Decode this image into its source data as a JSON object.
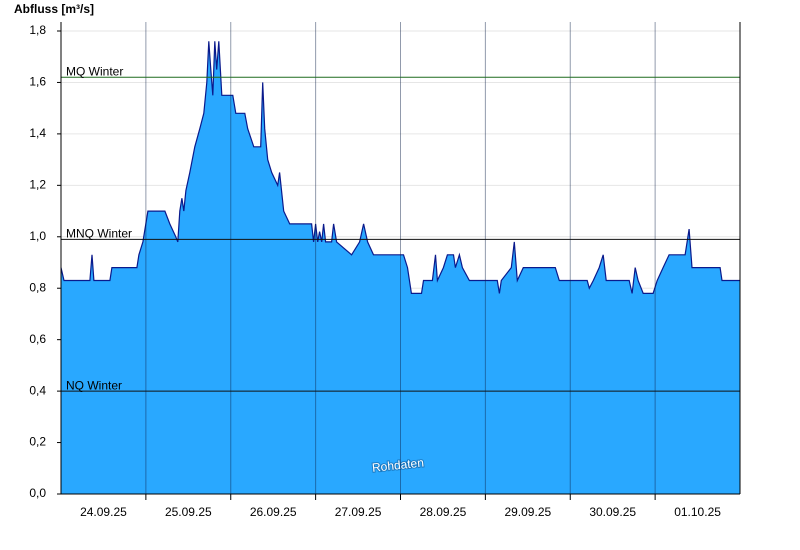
{
  "chart_data": {
    "type": "area",
    "title": "Abfluss [m³/s]",
    "annotation": "Rohdaten",
    "x": [
      0,
      0.035,
      0.341,
      0.365,
      0.388,
      0.576,
      0.6,
      0.894,
      0.918,
      0.965,
      1.024,
      1.224,
      1.282,
      1.353,
      1.376,
      1.4,
      1.424,
      1.447,
      1.471,
      1.518,
      1.576,
      1.635,
      1.682,
      1.718,
      1.741,
      1.765,
      1.788,
      1.812,
      1.835,
      1.859,
      1.894,
      2.024,
      2.059,
      2.165,
      2.2,
      2.271,
      2.353,
      2.376,
      2.4,
      2.435,
      2.482,
      2.553,
      2.576,
      2.624,
      2.694,
      2.953,
      2.976,
      3,
      3.024,
      3.047,
      3.071,
      3.094,
      3.118,
      3.188,
      3.212,
      3.247,
      3.424,
      3.518,
      3.565,
      3.612,
      3.682,
      4.035,
      4.082,
      4.129,
      4.247,
      4.271,
      4.376,
      4.412,
      4.435,
      4.506,
      4.553,
      4.624,
      4.647,
      4.694,
      4.729,
      4.812,
      5.141,
      5.165,
      5.188,
      5.306,
      5.341,
      5.376,
      5.447,
      5.824,
      5.871,
      6.2,
      6.224,
      6.271,
      6.341,
      6.388,
      6.424,
      6.694,
      6.729,
      6.765,
      6.8,
      6.859,
      6.976,
      7.024,
      7.094,
      7.165,
      7.353,
      7.4,
      7.435,
      7.765,
      7.788,
      8
    ],
    "values": [
      0.88,
      0.83,
      0.83,
      0.93,
      0.83,
      0.83,
      0.88,
      0.88,
      0.93,
      0.98,
      1.1,
      1.1,
      1.05,
      1.0,
      0.98,
      1.1,
      1.15,
      1.1,
      1.18,
      1.25,
      1.35,
      1.42,
      1.48,
      1.6,
      1.76,
      1.65,
      1.55,
      1.76,
      1.65,
      1.76,
      1.55,
      1.55,
      1.48,
      1.48,
      1.42,
      1.35,
      1.35,
      1.6,
      1.42,
      1.3,
      1.25,
      1.2,
      1.25,
      1.1,
      1.05,
      1.05,
      0.98,
      1.05,
      0.98,
      1.02,
      0.98,
      1.05,
      0.98,
      0.98,
      1.05,
      0.98,
      0.93,
      0.98,
      1.05,
      0.98,
      0.93,
      0.93,
      0.88,
      0.78,
      0.78,
      0.83,
      0.83,
      0.93,
      0.83,
      0.88,
      0.93,
      0.93,
      0.88,
      0.93,
      0.88,
      0.83,
      0.83,
      0.78,
      0.83,
      0.88,
      0.98,
      0.83,
      0.88,
      0.88,
      0.83,
      0.83,
      0.8,
      0.83,
      0.88,
      0.93,
      0.83,
      0.83,
      0.78,
      0.88,
      0.83,
      0.78,
      0.78,
      0.83,
      0.88,
      0.93,
      0.93,
      1.03,
      0.88,
      0.88,
      0.83,
      0.83
    ],
    "fill_color": "#29a8ff",
    "line_color": "#0a1a8c",
    "xlim": [
      0,
      8
    ],
    "xticks": [
      {
        "value": 0.5,
        "label": "24.09.25"
      },
      {
        "value": 1.5,
        "label": "25.09.25"
      },
      {
        "value": 2.5,
        "label": "26.09.25"
      },
      {
        "value": 3.5,
        "label": "27.09.25"
      },
      {
        "value": 4.5,
        "label": "28.09.25"
      },
      {
        "value": 5.5,
        "label": "29.09.25"
      },
      {
        "value": 6.5,
        "label": "30.09.25"
      },
      {
        "value": 7.5,
        "label": "01.10.25"
      }
    ],
    "xgrid": [
      1,
      2,
      3,
      4,
      5,
      6,
      7
    ],
    "ylim": [
      0,
      1.835
    ],
    "yticks": [
      {
        "value": 0,
        "label": "0,0"
      },
      {
        "value": 0.2,
        "label": "0,2"
      },
      {
        "value": 0.4,
        "label": "0,4"
      },
      {
        "value": 0.6,
        "label": "0,6"
      },
      {
        "value": 0.8,
        "label": "0,8"
      },
      {
        "value": 1.0,
        "label": "1,0"
      },
      {
        "value": 1.2,
        "label": "1,2"
      },
      {
        "value": 1.4,
        "label": "1,4"
      },
      {
        "value": 1.6,
        "label": "1,6"
      },
      {
        "value": 1.8,
        "label": "1,8"
      }
    ],
    "grid": true,
    "reference_lines": [
      {
        "label": "MQ Winter",
        "value": 1.62,
        "color": "#1f6b1f"
      },
      {
        "label": "MNQ Winter",
        "value": 0.99,
        "color": "#111111"
      },
      {
        "label": "NQ Winter",
        "value": 0.4,
        "color": "#111111"
      }
    ]
  }
}
